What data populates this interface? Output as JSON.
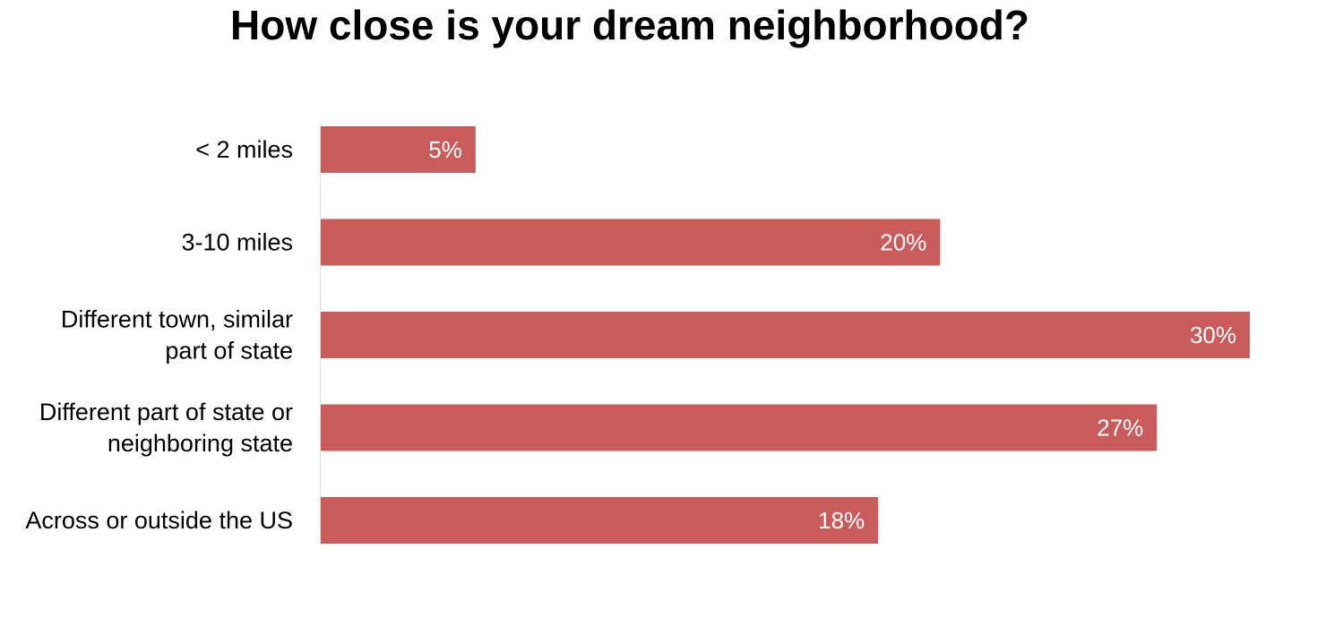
{
  "chart_data": {
    "type": "bar",
    "orientation": "horizontal",
    "title": "How close is your dream neighborhood?",
    "xlabel": "",
    "ylabel": "",
    "categories": [
      [
        "< 2 miles"
      ],
      [
        "3-10 miles"
      ],
      [
        "Different town, similar",
        "part of state"
      ],
      [
        "Different part of state or",
        "neighboring state"
      ],
      [
        "Across or outside the US"
      ]
    ],
    "values": [
      5,
      20,
      30,
      27,
      18
    ],
    "value_labels": [
      "5%",
      "20%",
      "30%",
      "27%",
      "18%"
    ],
    "unit": "%",
    "xlim": [
      0,
      30
    ],
    "grid": false,
    "legend": "none",
    "colors": {
      "bar": "#c95b5a",
      "axis": "#e0e0e0",
      "value_label": "#ffffff",
      "text": "#000000"
    }
  }
}
